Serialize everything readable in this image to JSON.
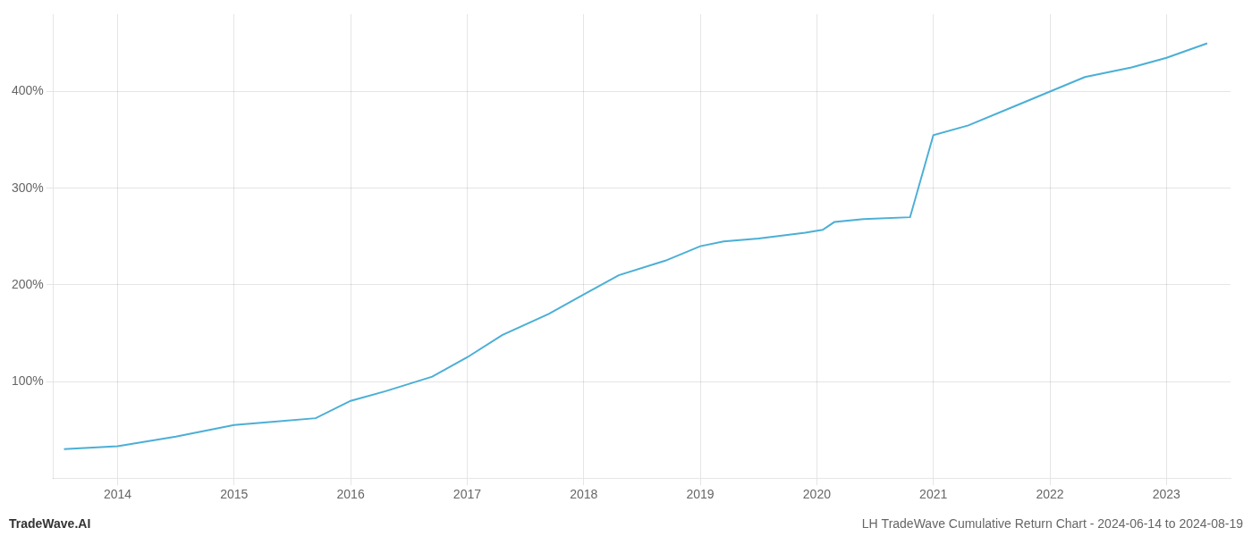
{
  "chart_data": {
    "type": "line",
    "title": "LH TradeWave Cumulative Return Chart - 2024-06-14 to 2024-08-19",
    "annotations": [
      "TradeWave.AI"
    ],
    "x": [
      2013.54,
      2014.0,
      2014.5,
      2015.0,
      2015.3,
      2015.7,
      2016.0,
      2016.3,
      2016.7,
      2017.0,
      2017.3,
      2017.7,
      2018.0,
      2018.3,
      2018.7,
      2019.0,
      2019.2,
      2019.5,
      2019.7,
      2019.9,
      2020.05,
      2020.15,
      2020.4,
      2020.8,
      2021.0,
      2021.3,
      2021.7,
      2022.0,
      2022.3,
      2022.7,
      2023.0,
      2023.35
    ],
    "values": [
      30,
      33,
      43,
      55,
      58,
      62,
      80,
      90,
      105,
      125,
      148,
      170,
      190,
      210,
      225,
      240,
      245,
      248,
      251,
      254,
      257,
      265,
      268,
      270,
      355,
      365,
      385,
      400,
      415,
      425,
      435,
      450
    ],
    "color": "#4bafd6",
    "xlim": [
      2013.45,
      2023.55
    ],
    "xticks": [
      2014,
      2015,
      2016,
      2017,
      2018,
      2019,
      2020,
      2021,
      2022,
      2023
    ],
    "ylim": [
      0,
      480
    ],
    "yticks": [
      {
        "value": 100,
        "label": "100%"
      },
      {
        "value": 200,
        "label": "200%"
      },
      {
        "value": 300,
        "label": "300%"
      },
      {
        "value": 400,
        "label": "400%"
      }
    ],
    "grid": true
  }
}
